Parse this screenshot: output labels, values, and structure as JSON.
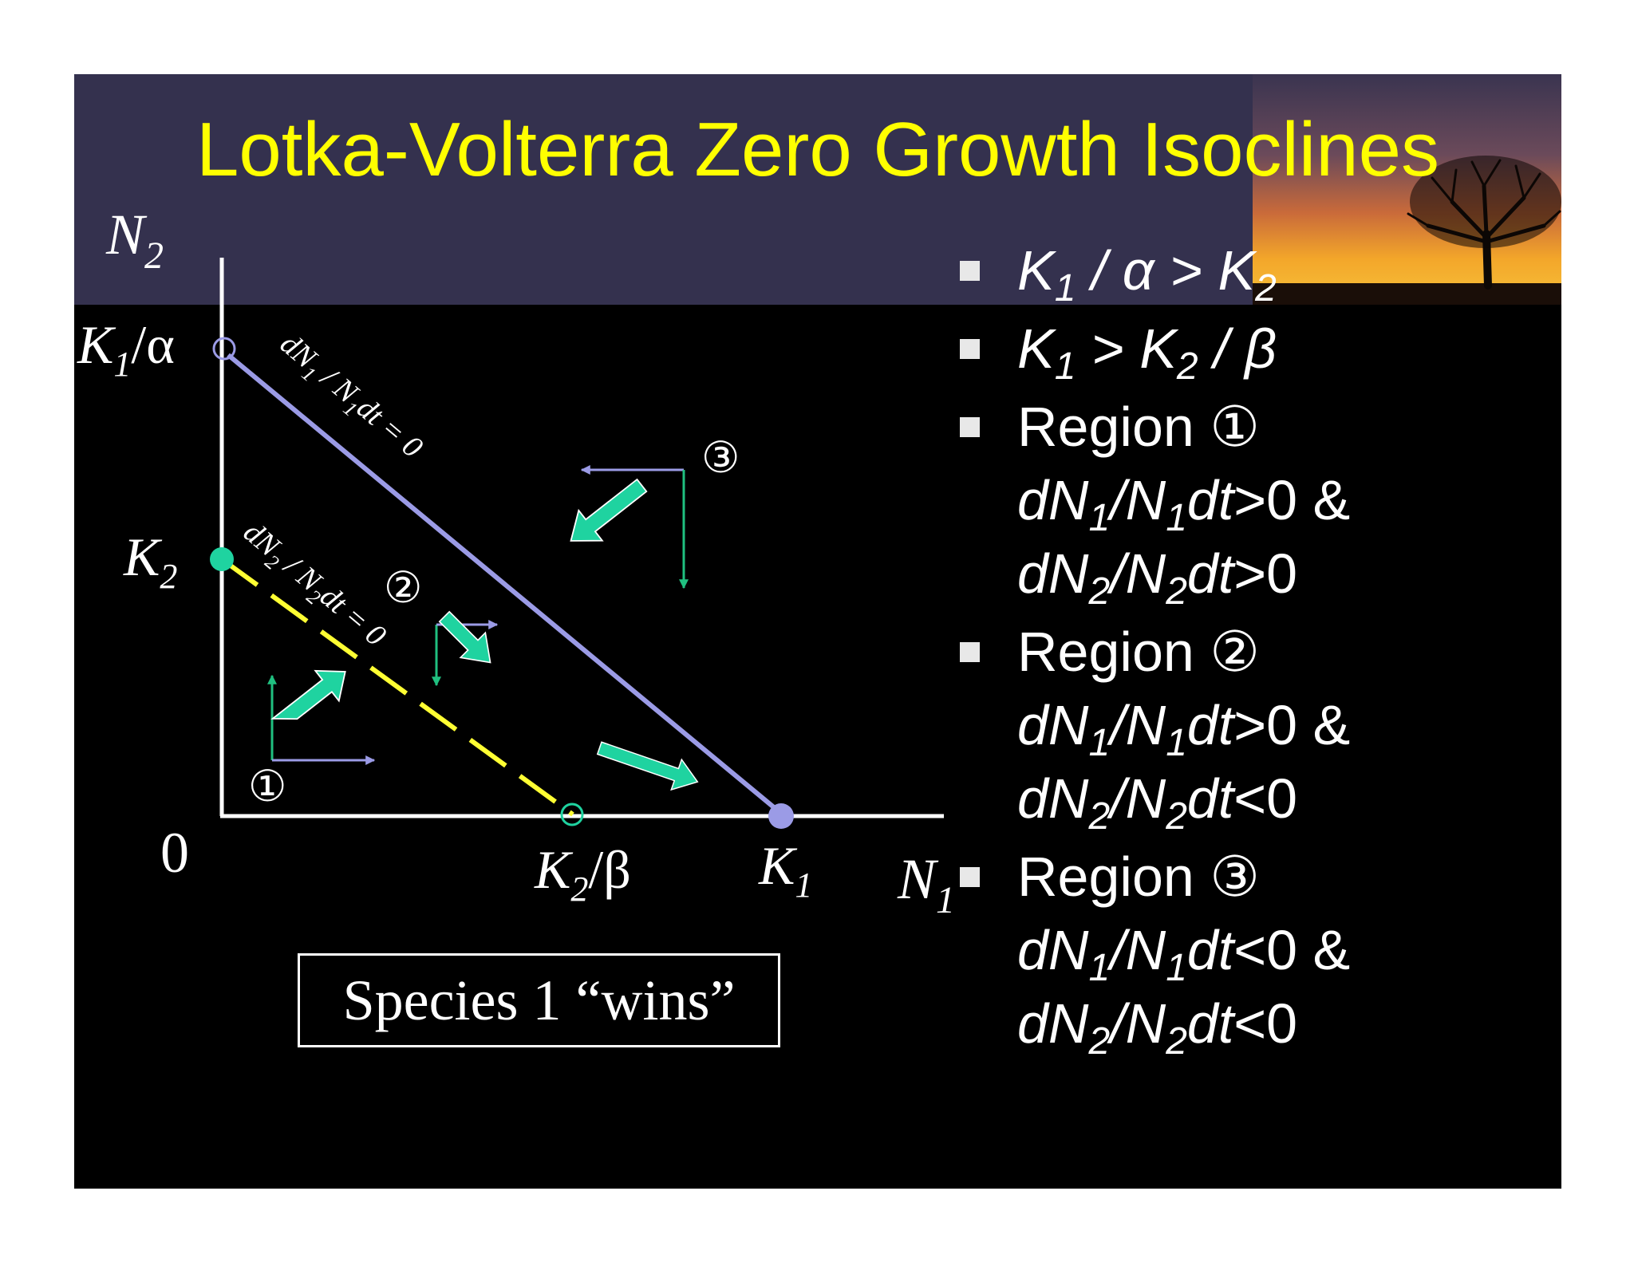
{
  "slide": {
    "title": "Lotka-Volterra Zero Growth Isoclines",
    "colors": {
      "title": "#ffff00",
      "header_band": "#34314e",
      "isocline_species1": "#9b9be6",
      "isocline_species2": "#ffff33",
      "trajectory_arrows": "#1fd3a0",
      "component_arrows_green": "#20c080",
      "component_arrows_purple": "#9b9be6"
    }
  },
  "diagram": {
    "axis_y_label": "N",
    "axis_y_sub": "2",
    "axis_x_label": "N",
    "axis_x_sub": "1",
    "origin_label": "0",
    "k1_alpha_label": {
      "main": "K",
      "sub": "1",
      "rest": "/α"
    },
    "k2_label": {
      "main": "K",
      "sub": "2"
    },
    "k2_beta_label": {
      "main": "K",
      "sub": "2",
      "rest": "/β"
    },
    "k1_label": {
      "main": "K",
      "sub": "1"
    },
    "isocline1_label": {
      "a": "dN",
      "a_sub": "1",
      "b": " / N",
      "b_sub": "1",
      "c": "dt = 0"
    },
    "isocline2_label": {
      "a": "dN",
      "a_sub": "2",
      "b": " / N",
      "b_sub": "2",
      "c": "dt = 0"
    },
    "region_markers": [
      "①",
      "②",
      "③"
    ],
    "verdict": "Species 1 “wins”"
  },
  "bullets": [
    {
      "lines": [
        [
          {
            "t": "K",
            "i": true
          },
          {
            "t": "1",
            "s": true,
            "i": true
          },
          {
            "t": " / α > ",
            "i": true
          },
          {
            "t": "K",
            "i": true
          },
          {
            "t": "2",
            "s": true,
            "i": true
          }
        ]
      ]
    },
    {
      "lines": [
        [
          {
            "t": "K",
            "i": true
          },
          {
            "t": "1",
            "s": true,
            "i": true
          },
          {
            "t": " > ",
            "i": true
          },
          {
            "t": "K",
            "i": true
          },
          {
            "t": "2",
            "s": true,
            "i": true
          },
          {
            "t": " / β",
            "i": true
          }
        ]
      ]
    },
    {
      "lines": [
        [
          {
            "t": "Region ①"
          }
        ],
        [
          {
            "t": "dN",
            "i": true
          },
          {
            "t": "1",
            "s": true,
            "i": true
          },
          {
            "t": "/N",
            "i": true
          },
          {
            "t": "1",
            "s": true,
            "i": true
          },
          {
            "t": "dt",
            "i": true
          },
          {
            "t": ">0 &"
          }
        ],
        [
          {
            "t": "dN",
            "i": true
          },
          {
            "t": "2",
            "s": true,
            "i": true
          },
          {
            "t": "/N",
            "i": true
          },
          {
            "t": "2",
            "s": true,
            "i": true
          },
          {
            "t": "dt",
            "i": true
          },
          {
            "t": ">0"
          }
        ]
      ]
    },
    {
      "lines": [
        [
          {
            "t": "Region ②"
          }
        ],
        [
          {
            "t": "dN",
            "i": true
          },
          {
            "t": "1",
            "s": true,
            "i": true
          },
          {
            "t": "/N",
            "i": true
          },
          {
            "t": "1",
            "s": true,
            "i": true
          },
          {
            "t": "dt",
            "i": true
          },
          {
            "t": ">0 &"
          }
        ],
        [
          {
            "t": "dN",
            "i": true
          },
          {
            "t": "2",
            "s": true,
            "i": true
          },
          {
            "t": "/N",
            "i": true
          },
          {
            "t": "2",
            "s": true,
            "i": true
          },
          {
            "t": "dt",
            "i": true
          },
          {
            "t": "<0"
          }
        ]
      ]
    },
    {
      "lines": [
        [
          {
            "t": "Region ③"
          }
        ],
        [
          {
            "t": "dN",
            "i": true
          },
          {
            "t": "1",
            "s": true,
            "i": true
          },
          {
            "t": "/N",
            "i": true
          },
          {
            "t": "1",
            "s": true,
            "i": true
          },
          {
            "t": "dt",
            "i": true
          },
          {
            "t": "<0 &"
          }
        ],
        [
          {
            "t": "dN",
            "i": true
          },
          {
            "t": "2",
            "s": true,
            "i": true
          },
          {
            "t": "/N",
            "i": true
          },
          {
            "t": "2",
            "s": true,
            "i": true
          },
          {
            "t": "dt",
            "i": true
          },
          {
            "t": "<0"
          }
        ]
      ]
    }
  ]
}
